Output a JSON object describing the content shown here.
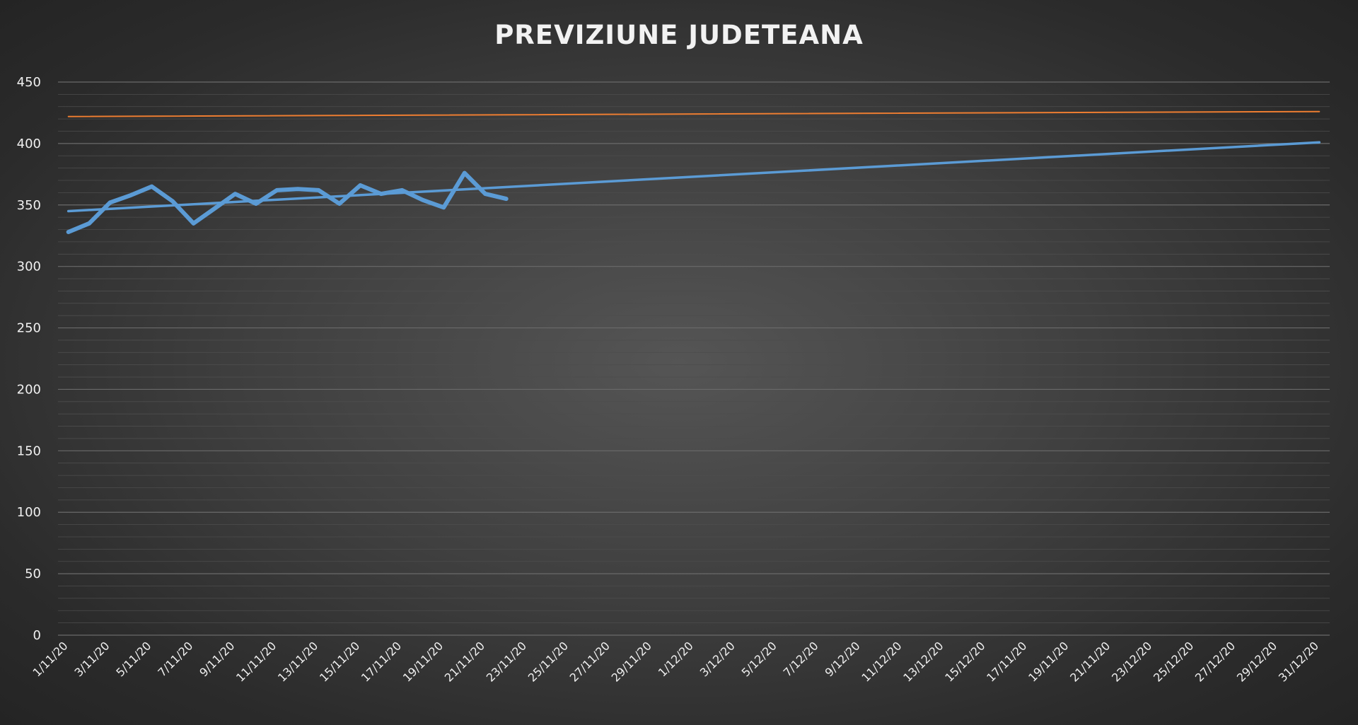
{
  "chart_data": {
    "type": "line",
    "title": "PREVIZIUNE JUDETEANA",
    "xlabel": "",
    "ylabel": "",
    "ylim": [
      0,
      450
    ],
    "yticks": [
      0,
      50,
      100,
      150,
      200,
      250,
      300,
      350,
      400,
      450
    ],
    "x_range": [
      "1/11/20",
      "31/12/20"
    ],
    "x_tick_labels": [
      "1/11/20",
      "3/11/20",
      "5/11/20",
      "7/11/20",
      "9/11/20",
      "11/11/20",
      "13/11/20",
      "15/11/20",
      "17/11/20",
      "19/11/20",
      "21/11/20",
      "23/11/20",
      "25/11/20",
      "27/11/20",
      "29/11/20",
      "1/12/20",
      "3/12/20",
      "5/12/20",
      "7/12/20",
      "9/12/20",
      "11/12/20",
      "13/12/20",
      "15/12/20",
      "17/11/20",
      "19/11/20",
      "21/11/20",
      "23/12/20",
      "25/12/20",
      "27/12/20",
      "29/12/20",
      "31/12/20"
    ],
    "grid": true,
    "legend": "none",
    "series": [
      {
        "color": "#5b9bd5",
        "x": [
          "1/11/20",
          "2/11/20",
          "3/11/20",
          "4/11/20",
          "5/11/20",
          "6/11/20",
          "7/11/20",
          "8/11/20",
          "9/11/20",
          "10/11/20",
          "11/11/20",
          "12/11/20",
          "13/11/20",
          "14/11/20",
          "15/11/20",
          "16/11/20",
          "17/11/20",
          "18/11/20",
          "19/11/20",
          "20/11/20",
          "21/11/20",
          "22/11/20"
        ],
        "values": [
          328,
          335,
          352,
          358,
          365,
          353,
          335,
          347,
          359,
          351,
          362,
          363,
          362,
          351,
          366,
          359,
          362,
          354,
          348,
          376,
          359,
          355
        ]
      },
      {
        "color": "#5b9bd5",
        "x": [
          "1/11/20",
          "31/12/20"
        ],
        "values": [
          345,
          401
        ]
      },
      {
        "color": "#ed7d31",
        "x": [
          "1/11/20",
          "31/12/20"
        ],
        "values": [
          422,
          426
        ]
      }
    ]
  }
}
